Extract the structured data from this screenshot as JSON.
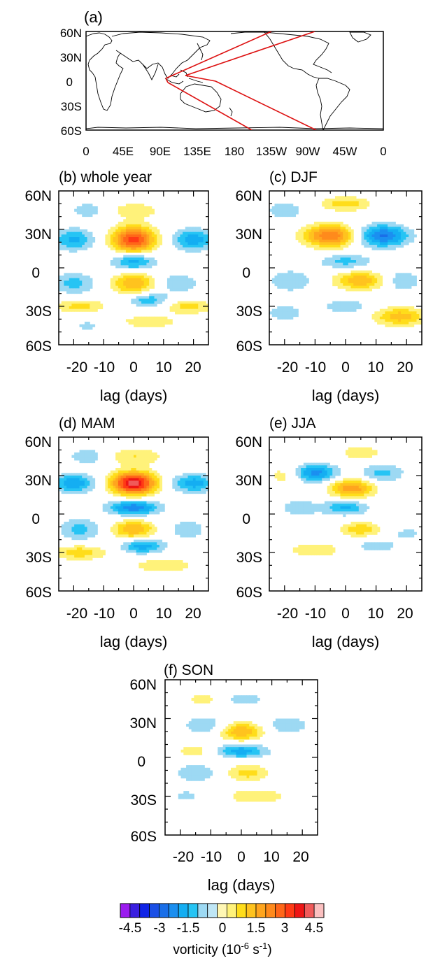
{
  "map_panel": {
    "label": "(a)",
    "lat_ticks": [
      "60N",
      "30N",
      "0",
      "30S",
      "60S"
    ],
    "lon_ticks": [
      "0",
      "45E",
      "90E",
      "135E",
      "180",
      "135W",
      "90W",
      "45W",
      "0"
    ],
    "line_color": "#dd1111"
  },
  "common": {
    "ylabels": [
      "60N",
      "30N",
      "0",
      "30S",
      "60S"
    ],
    "xticks": [
      "-20",
      "-10",
      "0",
      "10",
      "20"
    ],
    "xlabel": "lag (days)"
  },
  "panels": [
    {
      "id": "b",
      "label": "(b) whole year"
    },
    {
      "id": "c",
      "label": "(c) DJF"
    },
    {
      "id": "d",
      "label": "(d) MAM"
    },
    {
      "id": "e",
      "label": "(e) JJA"
    },
    {
      "id": "f",
      "label": "(f) SON"
    }
  ],
  "colorbar": {
    "levels": [
      -4.5,
      -4,
      -3.5,
      -3,
      -2.5,
      -2,
      -1.5,
      -1,
      -0.5,
      0,
      0.5,
      1,
      1.5,
      2,
      2.5,
      3,
      3.5,
      4,
      4.5
    ],
    "tick_labels": [
      "-4.5",
      "-3",
      "-1.5",
      "0",
      "1.5",
      "3",
      "4.5"
    ],
    "colors": [
      "#9b1bef",
      "#3a1fe0",
      "#1024e6",
      "#1a4fe6",
      "#1a6fe8",
      "#1b8ff0",
      "#14aef2",
      "#26c4f4",
      "#9dd9f3",
      "#bfe6f5",
      "#fff7b4",
      "#fff27a",
      "#ffdd1a",
      "#ffc31e",
      "#ffa51e",
      "#ff8a1c",
      "#ff6619",
      "#ff3a15",
      "#ee1515",
      "#f05a5a",
      "#fbc0c0"
    ],
    "label": "vorticity (10",
    "label_exp1": "-6",
    "label_mid": " s",
    "label_exp2": "-1",
    "label_end": ")"
  },
  "chart_data": {
    "type": "heatmap",
    "xlabel": "lag (days)",
    "x_range": [
      -25,
      25
    ],
    "y_range": [
      -60,
      60
    ],
    "units": "vorticity (10^-6 s^-1)",
    "contour_levels": [
      -4.5,
      -4,
      -3.5,
      -3,
      -2.5,
      -2,
      -1.5,
      -1,
      -0.5,
      0,
      0.5,
      1,
      1.5,
      2,
      2.5,
      3,
      3.5,
      4,
      4.5
    ],
    "panels": [
      {
        "name": "(b) whole year",
        "features": [
          {
            "lag": 0,
            "lat": 22,
            "value": 3.8,
            "sx": 5,
            "sy": 7
          },
          {
            "lag": -20,
            "lat": 22,
            "value": -1.6,
            "sx": 5,
            "sy": 6
          },
          {
            "lag": 20,
            "lat": 22,
            "value": -1.8,
            "sx": 5,
            "sy": 6
          },
          {
            "lag": 0,
            "lat": 5,
            "value": -1.8,
            "sx": 5,
            "sy": 5
          },
          {
            "lag": 0,
            "lat": -12,
            "value": 2.0,
            "sx": 5,
            "sy": 6
          },
          {
            "lag": -20,
            "lat": -12,
            "value": -1.2,
            "sx": 5,
            "sy": 6
          },
          {
            "lag": 15,
            "lat": -12,
            "value": -0.9,
            "sx": 5,
            "sy": 6
          },
          {
            "lag": 0,
            "lat": 45,
            "value": 0.8,
            "sx": 7,
            "sy": 5
          },
          {
            "lag": -15,
            "lat": 45,
            "value": -0.8,
            "sx": 5,
            "sy": 5
          },
          {
            "lag": -18,
            "lat": -30,
            "value": 1.2,
            "sx": 6,
            "sy": 4
          },
          {
            "lag": 18,
            "lat": -30,
            "value": 1.2,
            "sx": 6,
            "sy": 4
          },
          {
            "lag": 5,
            "lat": -25,
            "value": -1.4,
            "sx": 5,
            "sy": 4
          },
          {
            "lag": 5,
            "lat": -42,
            "value": 0.8,
            "sx": 8,
            "sy": 4
          },
          {
            "lag": -15,
            "lat": -45,
            "value": -0.6,
            "sx": 5,
            "sy": 5
          }
        ]
      },
      {
        "name": "(c) DJF",
        "features": [
          {
            "lag": -5,
            "lat": 25,
            "value": 3.0,
            "sx": 6,
            "sy": 6
          },
          {
            "lag": 12,
            "lat": 25,
            "value": -2.6,
            "sx": 6,
            "sy": 6
          },
          {
            "lag": 0,
            "lat": 50,
            "value": 1.3,
            "sx": 6,
            "sy": 4
          },
          {
            "lag": -20,
            "lat": 45,
            "value": -0.8,
            "sx": 5,
            "sy": 6
          },
          {
            "lag": 0,
            "lat": 5,
            "value": -1.2,
            "sx": 6,
            "sy": 4
          },
          {
            "lag": 5,
            "lat": -10,
            "value": 2.0,
            "sx": 6,
            "sy": 5
          },
          {
            "lag": -18,
            "lat": -10,
            "value": -1.0,
            "sx": 5,
            "sy": 6
          },
          {
            "lag": 18,
            "lat": -10,
            "value": -1.0,
            "sx": 5,
            "sy": 6
          },
          {
            "lag": 18,
            "lat": -38,
            "value": 1.8,
            "sx": 6,
            "sy": 5
          },
          {
            "lag": 0,
            "lat": -30,
            "value": -1.0,
            "sx": 5,
            "sy": 4
          },
          {
            "lag": -20,
            "lat": -35,
            "value": -0.8,
            "sx": 5,
            "sy": 5
          }
        ]
      },
      {
        "name": "(d) MAM",
        "features": [
          {
            "lag": 0,
            "lat": 24,
            "value": 4.8,
            "sx": 5,
            "sy": 6
          },
          {
            "lag": -20,
            "lat": 24,
            "value": -2.0,
            "sx": 5,
            "sy": 5
          },
          {
            "lag": 20,
            "lat": 24,
            "value": -1.8,
            "sx": 5,
            "sy": 5
          },
          {
            "lag": 0,
            "lat": 5,
            "value": -2.4,
            "sx": 6,
            "sy": 4
          },
          {
            "lag": 0,
            "lat": -12,
            "value": 2.0,
            "sx": 5,
            "sy": 5
          },
          {
            "lag": 0,
            "lat": 45,
            "value": 1.0,
            "sx": 7,
            "sy": 5
          },
          {
            "lag": -15,
            "lat": 45,
            "value": -0.9,
            "sx": 5,
            "sy": 5
          },
          {
            "lag": -18,
            "lat": -12,
            "value": -1.2,
            "sx": 5,
            "sy": 6
          },
          {
            "lag": 18,
            "lat": -12,
            "value": -0.8,
            "sx": 5,
            "sy": 6
          },
          {
            "lag": 3,
            "lat": -25,
            "value": -1.8,
            "sx": 5,
            "sy": 4
          },
          {
            "lag": -18,
            "lat": -30,
            "value": 1.4,
            "sx": 6,
            "sy": 4
          },
          {
            "lag": 10,
            "lat": -40,
            "value": 1.0,
            "sx": 7,
            "sy": 4
          }
        ]
      },
      {
        "name": "(e) JJA",
        "features": [
          {
            "lag": 2,
            "lat": 20,
            "value": 2.4,
            "sx": 5,
            "sy": 5
          },
          {
            "lag": -10,
            "lat": 32,
            "value": -2.2,
            "sx": 5,
            "sy": 5
          },
          {
            "lag": 12,
            "lat": 32,
            "value": -1.2,
            "sx": 5,
            "sy": 5
          },
          {
            "lag": 0,
            "lat": 5,
            "value": -1.6,
            "sx": 5,
            "sy": 4
          },
          {
            "lag": 5,
            "lat": -12,
            "value": 1.4,
            "sx": 5,
            "sy": 4
          },
          {
            "lag": -20,
            "lat": 30,
            "value": 0.8,
            "sx": 4,
            "sy": 6
          },
          {
            "lag": 5,
            "lat": 48,
            "value": 0.9,
            "sx": 5,
            "sy": 4
          },
          {
            "lag": -15,
            "lat": 5,
            "value": -0.8,
            "sx": 5,
            "sy": 5
          },
          {
            "lag": -10,
            "lat": -28,
            "value": 1.0,
            "sx": 6,
            "sy": 4
          },
          {
            "lag": 10,
            "lat": -25,
            "value": -0.8,
            "sx": 5,
            "sy": 4
          },
          {
            "lag": 20,
            "lat": -15,
            "value": -0.6,
            "sx": 5,
            "sy": 5
          }
        ]
      },
      {
        "name": "(f) SON",
        "features": [
          {
            "lag": 0,
            "lat": 20,
            "value": 2.0,
            "sx": 5,
            "sy": 5
          },
          {
            "lag": -12,
            "lat": 25,
            "value": -1.0,
            "sx": 5,
            "sy": 5
          },
          {
            "lag": 15,
            "lat": 25,
            "value": -1.0,
            "sx": 5,
            "sy": 5
          },
          {
            "lag": 0,
            "lat": 5,
            "value": -1.8,
            "sx": 6,
            "sy": 4
          },
          {
            "lag": 2,
            "lat": -12,
            "value": 1.2,
            "sx": 5,
            "sy": 5
          },
          {
            "lag": -15,
            "lat": -12,
            "value": -1.0,
            "sx": 5,
            "sy": 5
          },
          {
            "lag": 0,
            "lat": 45,
            "value": -0.8,
            "sx": 6,
            "sy": 4
          },
          {
            "lag": -12,
            "lat": 45,
            "value": 0.8,
            "sx": 5,
            "sy": 4
          },
          {
            "lag": -15,
            "lat": 5,
            "value": 0.8,
            "sx": 5,
            "sy": 4
          },
          {
            "lag": 5,
            "lat": -30,
            "value": 1.0,
            "sx": 7,
            "sy": 4
          },
          {
            "lag": -18,
            "lat": -30,
            "value": -0.6,
            "sx": 5,
            "sy": 5
          }
        ]
      }
    ]
  }
}
